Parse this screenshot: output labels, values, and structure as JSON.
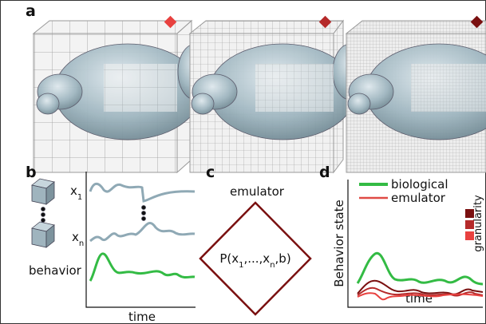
{
  "panels": {
    "a": "a",
    "b": "b",
    "c": "c",
    "d": "d"
  },
  "panel_b": {
    "x1": {
      "base": "x",
      "sub": "1"
    },
    "xn": {
      "base": "x",
      "sub": "n"
    },
    "behavior": "behavior",
    "x_axis": "time"
  },
  "panel_c": {
    "title": "emulator",
    "formula": [
      "P(x",
      "1",
      ",...,x",
      "n",
      ",b)"
    ]
  },
  "panel_d": {
    "legend": [
      "biological",
      "emulator"
    ],
    "y_axis": "Behavior state",
    "x_axis": "time",
    "granularity": "granularity"
  }
}
